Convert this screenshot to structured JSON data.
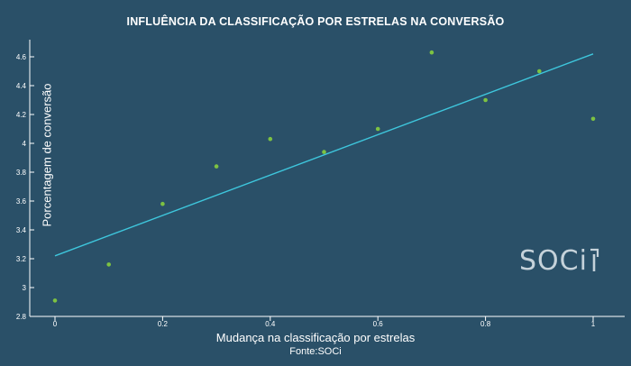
{
  "chart_data": {
    "type": "scatter",
    "title": "INFLUÊNCIA DA CLASSIFICAÇÃO POR ESTRELAS NA CONVERSÃO",
    "xlabel": "Mudança na classificação por estrelas",
    "ylabel": "Porcentagem de conversão",
    "source": "Fonte:SOCi",
    "xlim": [
      0,
      1
    ],
    "ylim": [
      2.8,
      4.7
    ],
    "xticks": [
      "0",
      "0.2",
      "0.4",
      "0.6",
      "0.8",
      "1"
    ],
    "xtick_values": [
      0,
      0.2,
      0.4,
      0.6,
      0.8,
      1
    ],
    "yticks": [
      "2.8",
      "3",
      "3.2",
      "3.4",
      "3.6",
      "3.8",
      "4",
      "4.2",
      "4.4",
      "4.6"
    ],
    "ytick_values": [
      2.8,
      3.0,
      3.2,
      3.4,
      3.6,
      3.8,
      4.0,
      4.2,
      4.4,
      4.6
    ],
    "grid": false,
    "points": {
      "x": [
        0,
        0.1,
        0.2,
        0.3,
        0.4,
        0.5,
        0.6,
        0.7,
        0.8,
        0.9,
        1.0
      ],
      "y": [
        2.91,
        3.16,
        3.58,
        3.84,
        4.03,
        3.94,
        4.1,
        4.63,
        4.3,
        4.5,
        4.17
      ]
    },
    "trendline": {
      "x": [
        0,
        1
      ],
      "y": [
        3.22,
        4.62
      ]
    },
    "colors": {
      "background": "#2a5068",
      "points": "#7dc242",
      "trendline": "#3ec6dc",
      "axis": "#ffffff"
    }
  },
  "brand": {
    "logo_text": "SOCi"
  }
}
